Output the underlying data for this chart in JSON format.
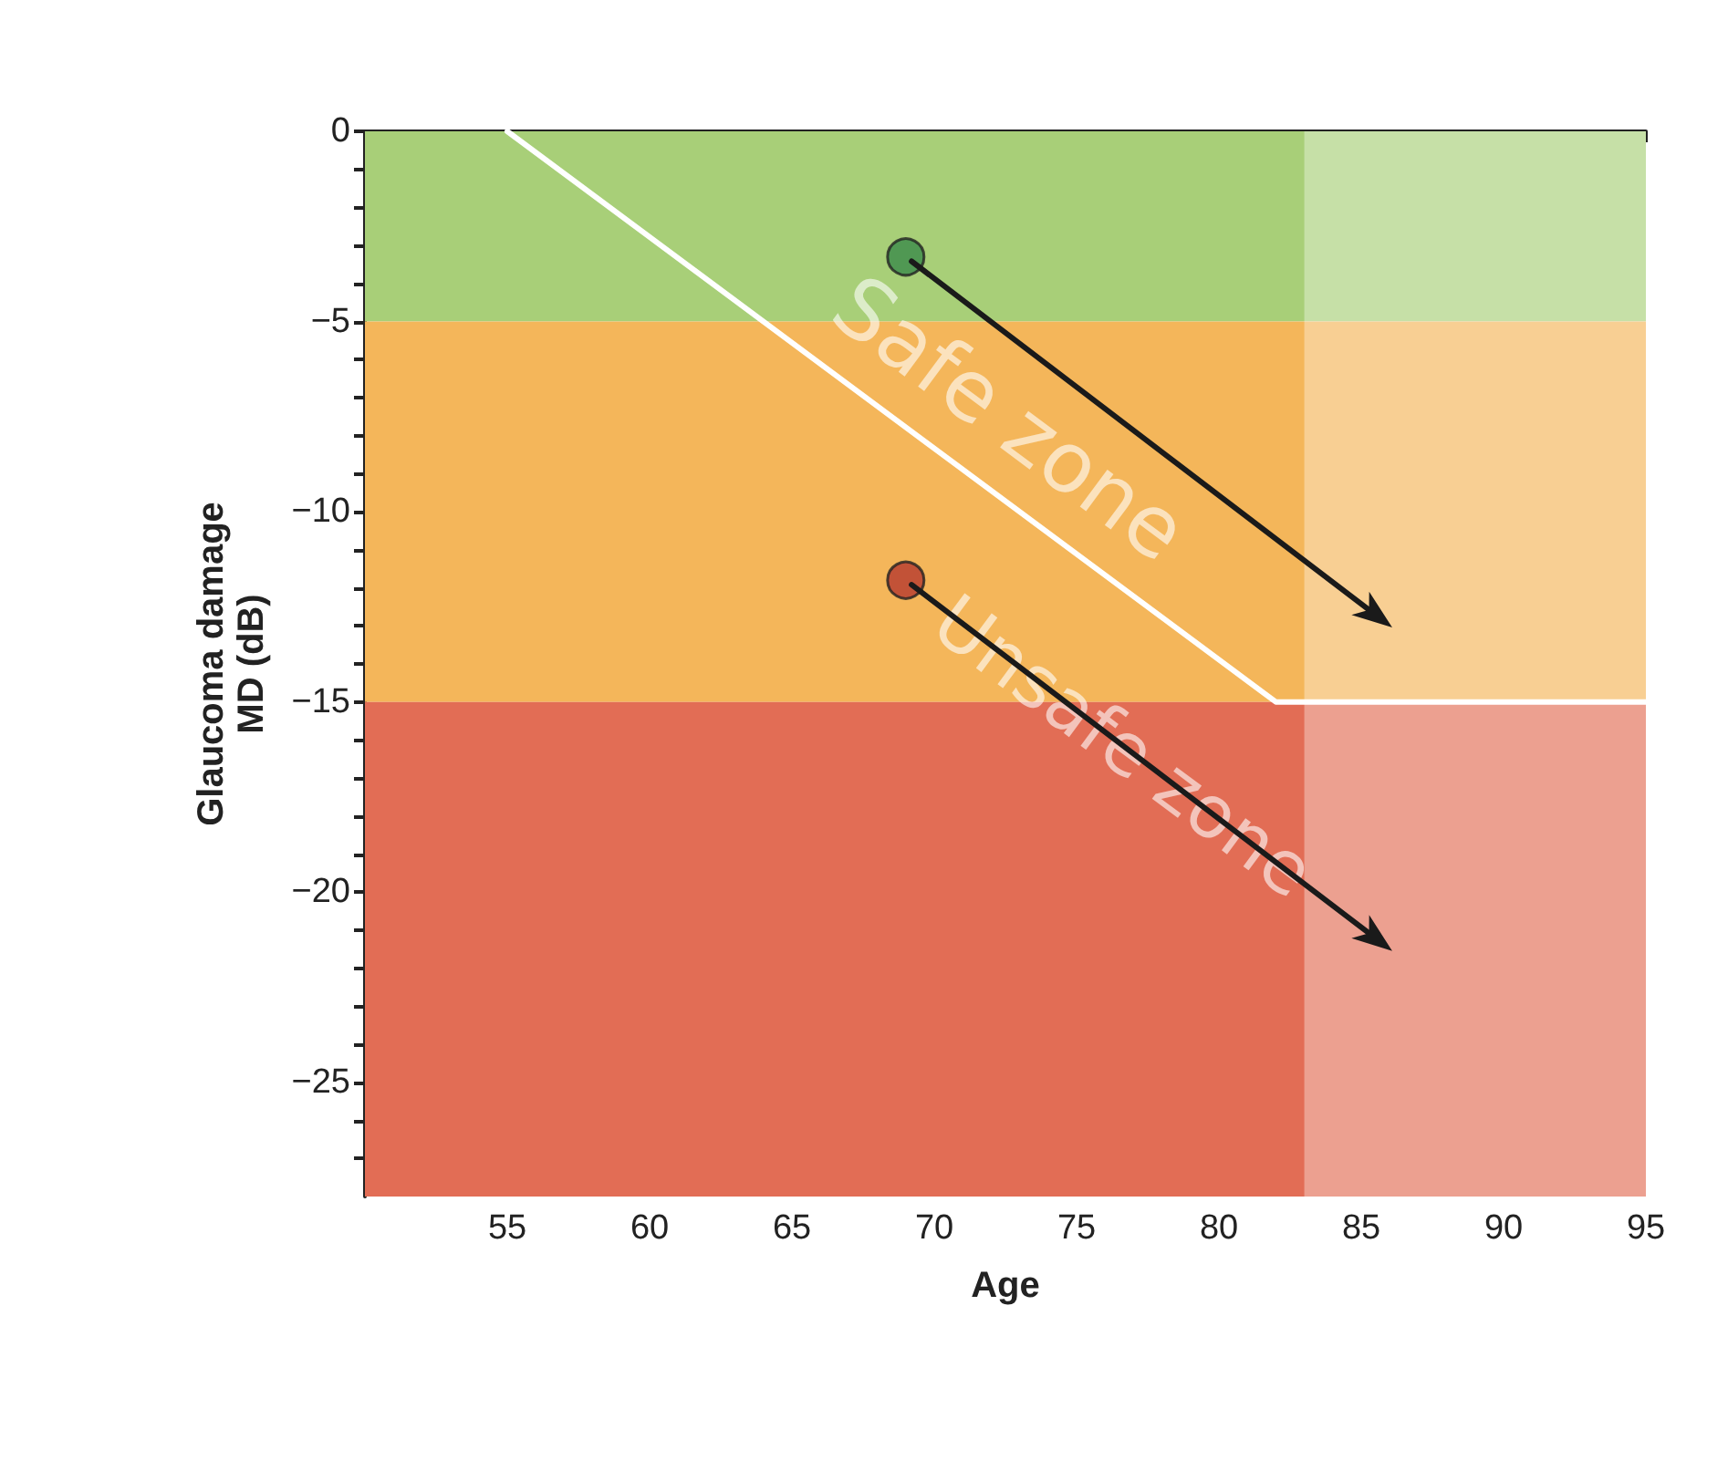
{
  "chart_data": {
    "type": "scatter",
    "xlabel": "Age",
    "ylabel": "Glaucoma damage\nMD (dB)",
    "xlim": [
      50,
      95
    ],
    "xticks": [
      55,
      60,
      65,
      70,
      75,
      80,
      85,
      90,
      95
    ],
    "ylim": [
      -28,
      0
    ],
    "yticks": [
      0,
      {
        "value": -5,
        "label": "−5"
      },
      {
        "value": -10,
        "label": "−10"
      },
      {
        "value": -15,
        "label": "−15"
      },
      {
        "value": -20,
        "label": "−20"
      },
      {
        "value": -25,
        "label": "−25"
      },
      {
        "value": -1,
        "label": null
      },
      {
        "value": -2,
        "label": null
      },
      {
        "value": -3,
        "label": null
      },
      {
        "value": -4,
        "label": null
      },
      {
        "value": -6,
        "label": null
      },
      {
        "value": -7,
        "label": null
      },
      {
        "value": -8,
        "label": null
      },
      {
        "value": -9,
        "label": null
      },
      {
        "value": -11,
        "label": null
      },
      {
        "value": -12,
        "label": null
      },
      {
        "value": -13,
        "label": null
      },
      {
        "value": -14,
        "label": null
      },
      {
        "value": -16,
        "label": null
      },
      {
        "value": -17,
        "label": null
      },
      {
        "value": -18,
        "label": null
      },
      {
        "value": -19,
        "label": null
      },
      {
        "value": -21,
        "label": null
      },
      {
        "value": -22,
        "label": null
      },
      {
        "value": -23,
        "label": null
      },
      {
        "value": -24,
        "label": null
      },
      {
        "value": -26,
        "label": null
      },
      {
        "value": -27,
        "label": null
      }
    ],
    "grid": false,
    "bands": [
      {
        "axis": "y",
        "from": -5,
        "to": 0,
        "color": "#a8cf78"
      },
      {
        "axis": "y",
        "from": -15,
        "to": -5,
        "color": "#f4b65a"
      },
      {
        "axis": "y",
        "from": -28,
        "to": -15,
        "color": "#e26d55"
      },
      {
        "axis": "x",
        "from": 83,
        "to": 95,
        "color": "#ffffff"
      }
    ],
    "series": [
      {
        "type": "line",
        "color": "#ffffff",
        "x": [
          55,
          82,
          95
        ],
        "values": [
          0,
          -15,
          -15
        ],
        "marker": "none"
      },
      {
        "color": "#3a8a4a",
        "x": [
          69
        ],
        "values": [
          -3.3
        ],
        "marker": "circle"
      },
      {
        "color": "#b53a2e",
        "x": [
          69
        ],
        "values": [
          -11.8
        ],
        "marker": "circle"
      }
    ],
    "annotations": [
      "Safe zone",
      "Unsafe zone"
    ]
  }
}
